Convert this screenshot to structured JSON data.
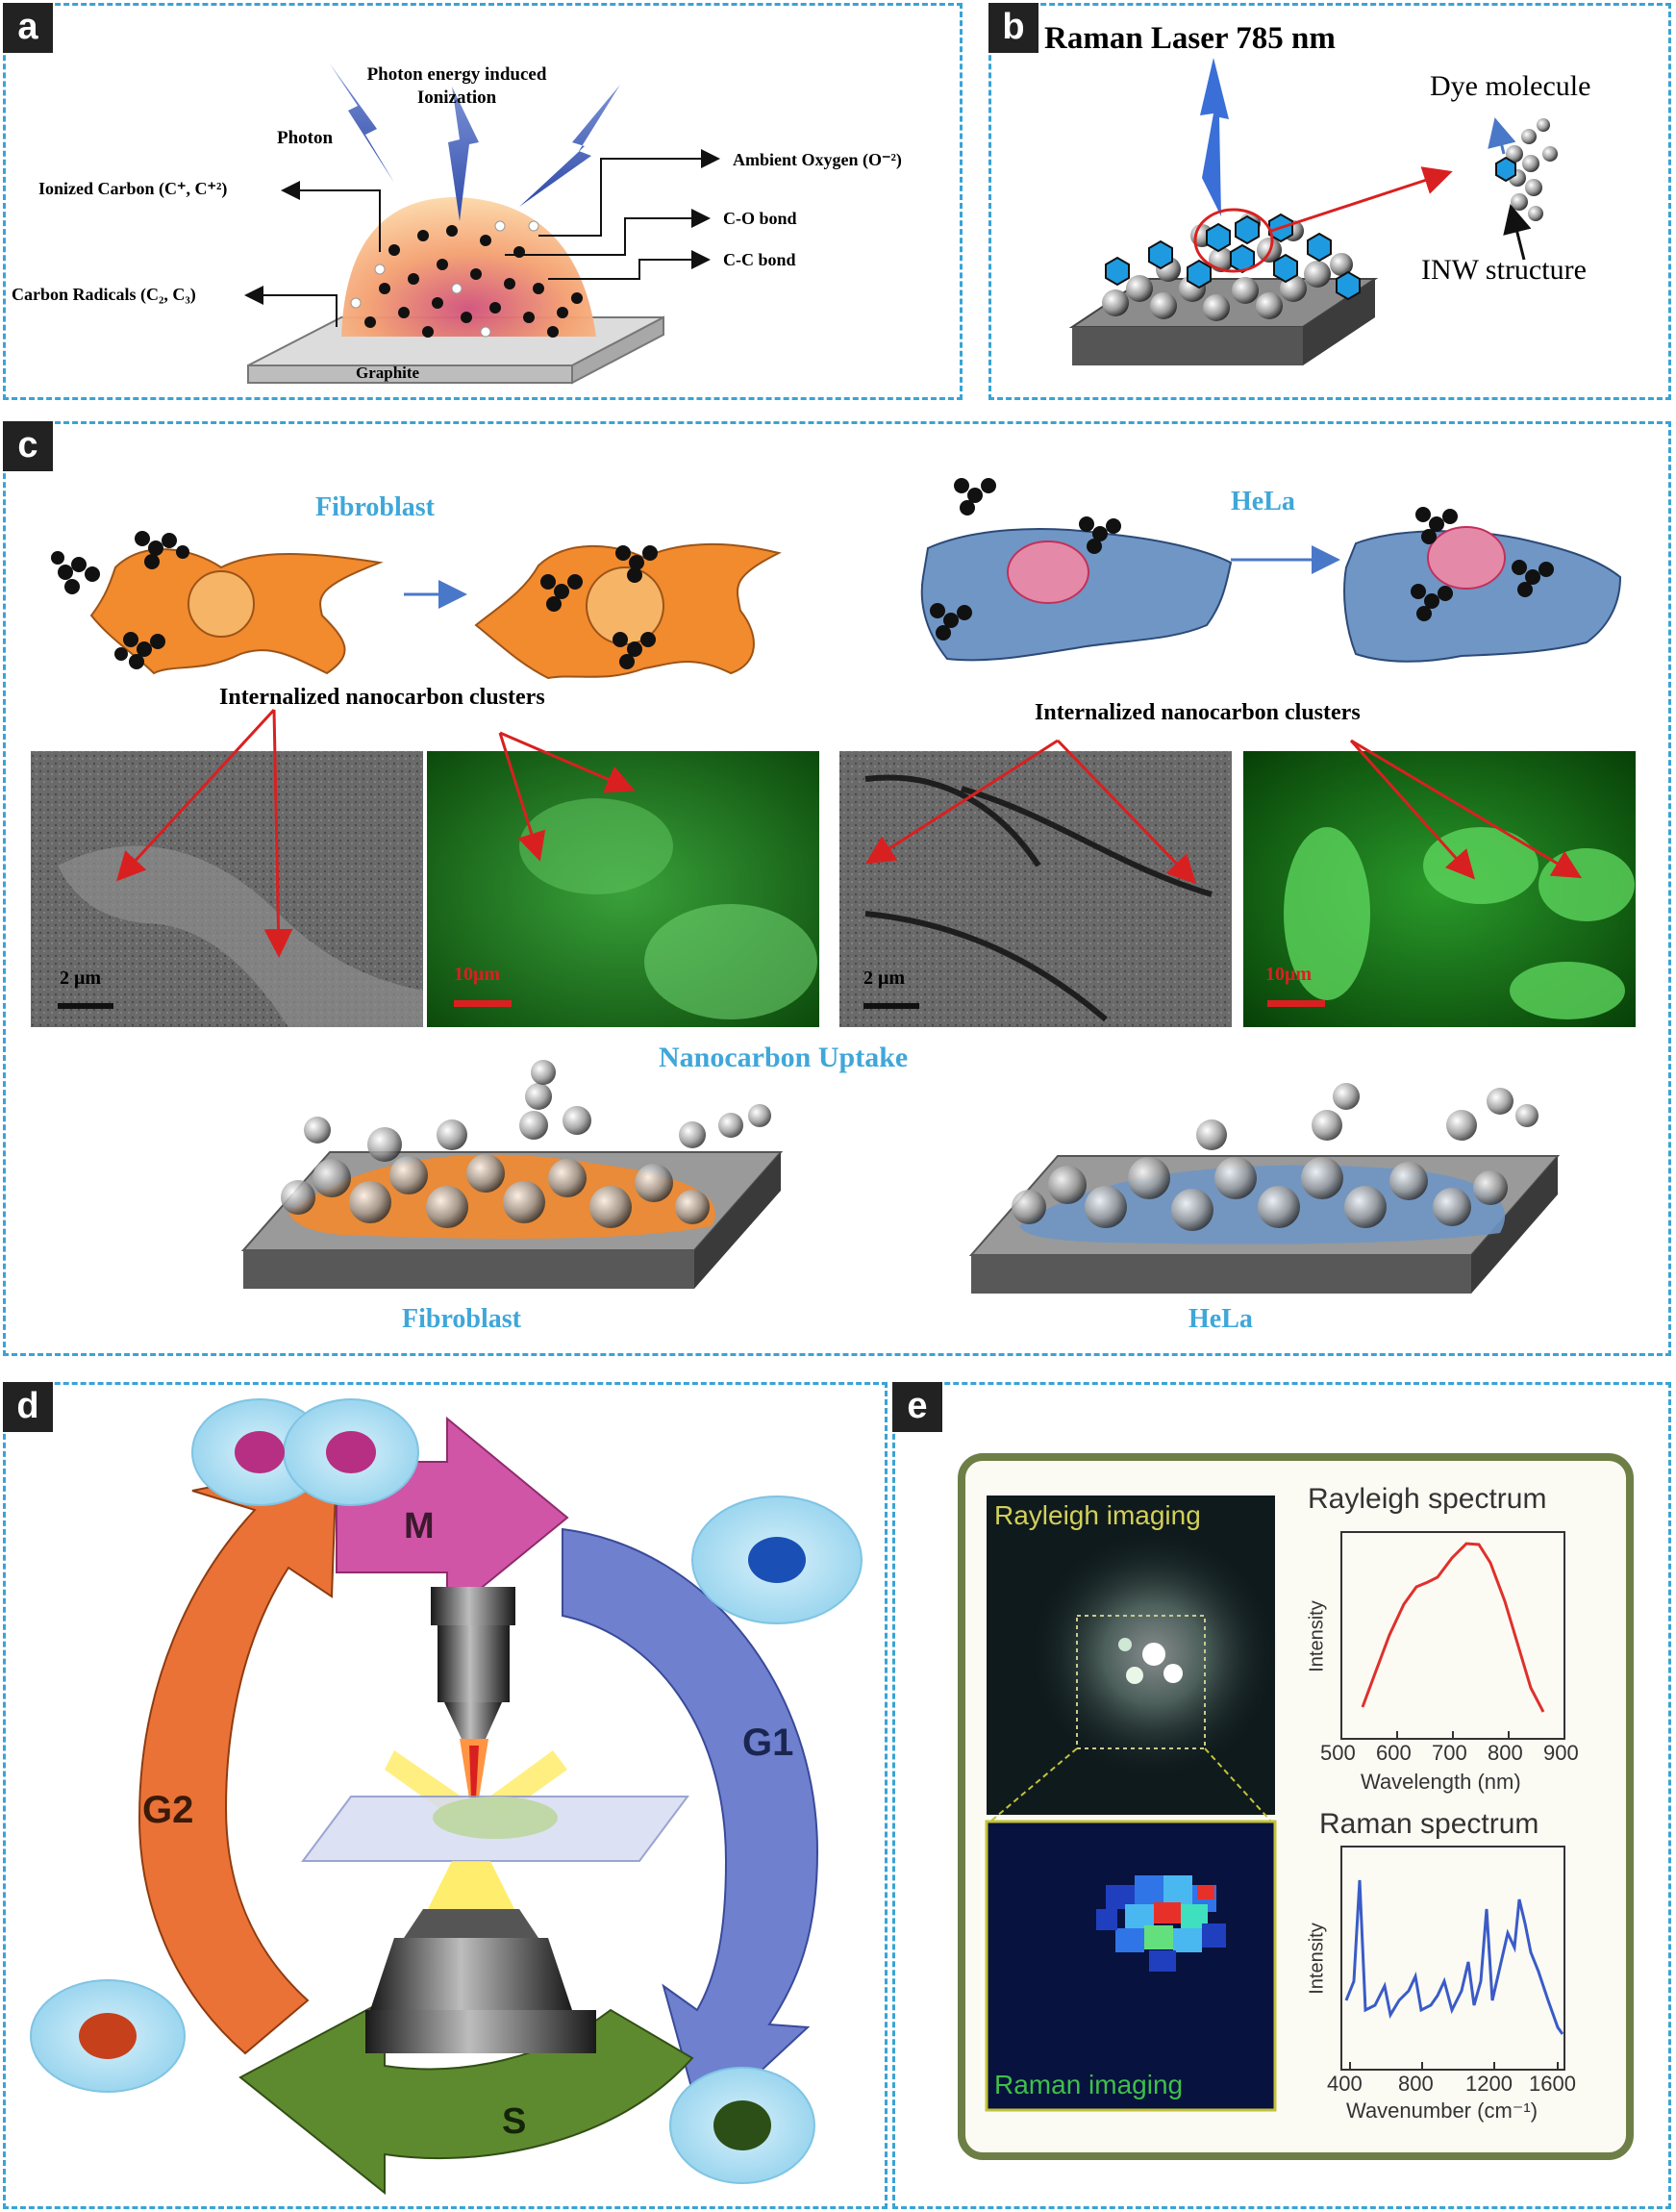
{
  "panel_a": {
    "tag": "a",
    "photon_energy_line1": "Photon energy induced",
    "photon_energy_line2": "Ionization",
    "photon": "Photon",
    "ionized_carbon": "Ionized Carbon (C⁺, C⁺²)",
    "ambient_oxygen": "Ambient Oxygen (O⁻²)",
    "co_bond": "C-O bond",
    "cc_bond": "C-C bond",
    "carbon_radicals": "Carbon Radicals (C₂, C₃)",
    "graphite": "Graphite"
  },
  "panel_b": {
    "tag": "b",
    "laser": "Raman Laser 785 nm",
    "dye": "Dye molecule",
    "inw": "INW structure"
  },
  "panel_c": {
    "tag": "c",
    "fibroblast_top": "Fibroblast",
    "hela_top": "HeLa",
    "internalized_left": "Internalized nanocarbon clusters",
    "internalized_right": "Internalized nanocarbon clusters",
    "scale_2um_a": "2 μm",
    "scale_10um_a": "10μm",
    "scale_2um_b": "2 μm",
    "scale_10um_b": "10μm",
    "uptake": "Nanocarbon Uptake",
    "fibroblast_bottom": "Fibroblast",
    "hela_bottom": "HeLa"
  },
  "panel_d": {
    "tag": "d",
    "phase_m": "M",
    "phase_g1": "G1",
    "phase_g2": "G2",
    "phase_s": "S"
  },
  "panel_e": {
    "tag": "e",
    "rayleigh_imaging": "Rayleigh imaging",
    "raman_imaging": "Raman imaging",
    "rayleigh_title": "Rayleigh spectrum",
    "raman_title": "Raman spectrum",
    "intensity": "Intensity",
    "wavelength_label": "Wavelength (nm)",
    "wavenumber_label": "Wavenumber (cm⁻¹)",
    "rayleigh_ticks": [
      "500",
      "600",
      "700",
      "800",
      "900"
    ],
    "raman_ticks": [
      "400",
      "800",
      "1200",
      "1600"
    ]
  },
  "colors": {
    "panel_border": "#39a3d6",
    "label_blue": "#3fa7d9",
    "fibroblast_orange": "#f28a2e",
    "hela_blue": "#6f96c4",
    "arrow_red": "#d92020",
    "phase_m": "#d155a6",
    "phase_g1": "#6f80cf",
    "phase_s": "#5e8a2f",
    "phase_g2": "#ea7237"
  }
}
